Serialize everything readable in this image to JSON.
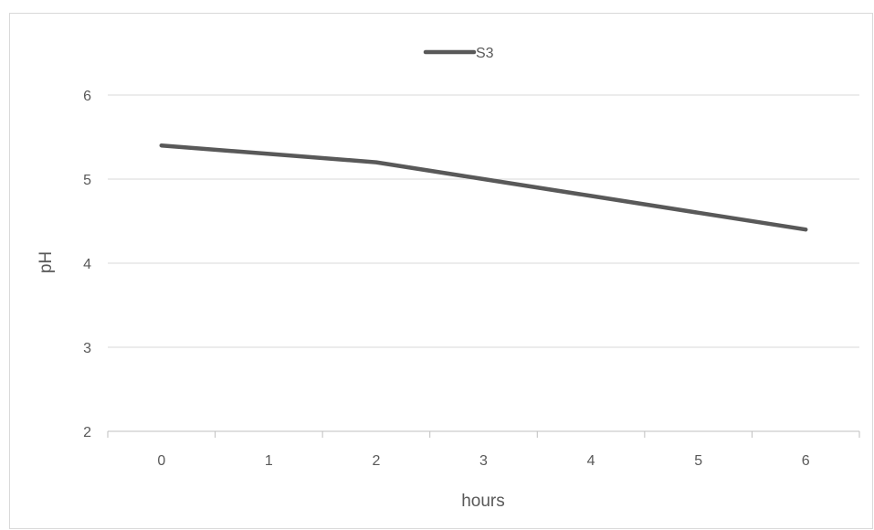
{
  "chart_data": {
    "type": "line",
    "title": "",
    "xlabel": "hours",
    "ylabel": "pH",
    "categories": [
      "0",
      "1",
      "2",
      "3",
      "4",
      "5",
      "6"
    ],
    "series": [
      {
        "name": "S3",
        "values": [
          5.4,
          5.3,
          5.2,
          5.0,
          4.8,
          4.6,
          4.4
        ],
        "color": "#595959"
      }
    ],
    "ylim": [
      2,
      6
    ],
    "yticks": [
      "2",
      "3",
      "4",
      "5",
      "6"
    ],
    "grid": true,
    "legend": "top-center",
    "gridline_color": "#d9d9d9",
    "axis_color": "#bfbfbf"
  }
}
